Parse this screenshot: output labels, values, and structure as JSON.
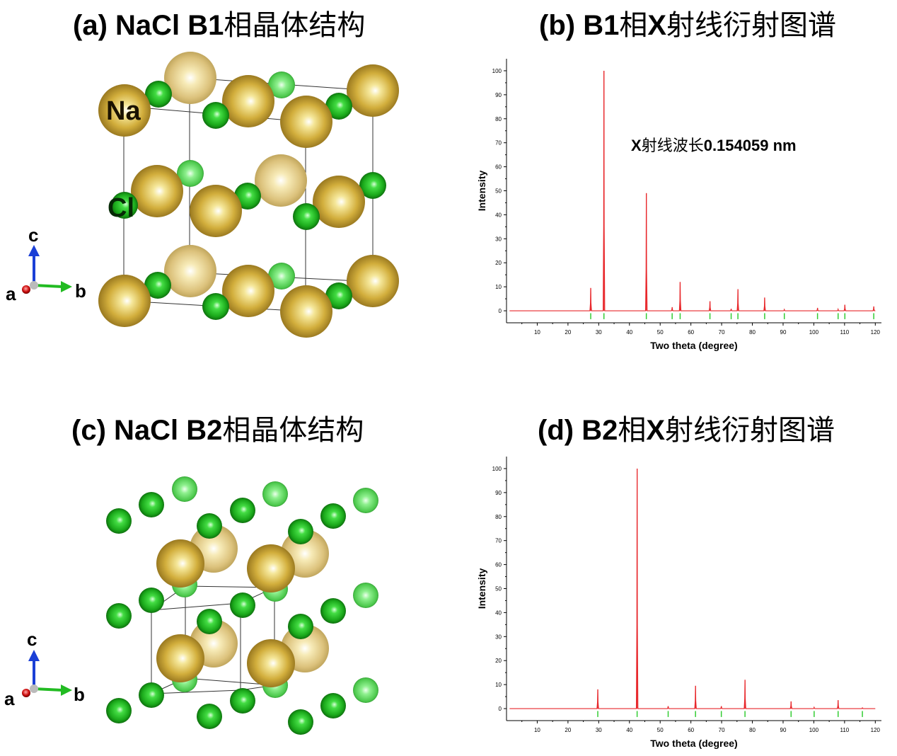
{
  "panels": {
    "a": {
      "title_prefix": "(a) NaCl B1",
      "title_suffix": "相晶体结构"
    },
    "b": {
      "title_prefix": "(b) B1",
      "title_mid1": "相",
      "title_x": "X",
      "title_suffix": "射线衍射图谱"
    },
    "c": {
      "title_prefix": "(c) NaCl B2",
      "title_suffix": "相晶体结构"
    },
    "d": {
      "title_prefix": "(d) B2",
      "title_mid1": "相",
      "title_x": "X",
      "title_suffix": "射线衍射图谱"
    }
  },
  "structure_labels": {
    "na": "Na",
    "cl": "Cl"
  },
  "axes_indicator": {
    "c": "c",
    "a": "a",
    "b": "b"
  },
  "annotation": {
    "x": "X",
    "cjk": "射线波长",
    "value": "0.154059 nm"
  },
  "colors": {
    "pattern_line": "#e8282c",
    "bragg_marks": "#33cc33",
    "na_gold": "#c9a632",
    "cl_green": "#22bb22",
    "axis_c": "#1a3fd6",
    "axis_b": "#22bb22",
    "axis_a": "#d01010"
  },
  "chart_data": [
    {
      "type": "line",
      "xlabel": "Two theta (degree)",
      "ylabel": "Intensity",
      "xlim": [
        0,
        122
      ],
      "ylim": [
        -5,
        105
      ],
      "xticks": [
        10,
        20,
        30,
        40,
        50,
        60,
        70,
        80,
        90,
        100,
        110,
        120
      ],
      "yticks": [
        0,
        10,
        20,
        30,
        40,
        50,
        60,
        70,
        80,
        90,
        100
      ],
      "series": [
        {
          "peaks": [
            [
              27.4,
              9.5
            ],
            [
              31.7,
              100
            ],
            [
              45.5,
              49
            ],
            [
              53.9,
              1.5
            ],
            [
              56.5,
              12
            ],
            [
              66.2,
              4
            ],
            [
              73.1,
              0.8
            ],
            [
              75.3,
              9
            ],
            [
              84.0,
              5.5
            ],
            [
              90.4,
              0.5
            ],
            [
              101.2,
              1.2
            ],
            [
              107.9,
              0.6
            ],
            [
              110.1,
              2.5
            ],
            [
              119.5,
              1.8
            ]
          ]
        }
      ],
      "bragg_marks": [
        27.4,
        31.7,
        45.5,
        53.9,
        56.5,
        66.2,
        73.1,
        75.3,
        84.0,
        90.4,
        101.2,
        107.9,
        110.1,
        119.5
      ],
      "grid": false
    },
    {
      "type": "line",
      "xlabel": "Two theta (degree)",
      "ylabel": "Intensity",
      "xlim": [
        0,
        122
      ],
      "ylim": [
        -5,
        105
      ],
      "xticks": [
        10,
        20,
        30,
        40,
        50,
        60,
        70,
        80,
        90,
        100,
        110,
        120
      ],
      "yticks": [
        0,
        10,
        20,
        30,
        40,
        50,
        60,
        70,
        80,
        90,
        100
      ],
      "series": [
        {
          "peaks": [
            [
              29.7,
              8
            ],
            [
              42.5,
              100
            ],
            [
              52.6,
              1
            ],
            [
              61.5,
              9.5
            ],
            [
              69.9,
              1
            ],
            [
              77.6,
              12
            ],
            [
              92.6,
              3
            ],
            [
              100.1,
              0.5
            ],
            [
              107.9,
              3.5
            ],
            [
              115.8,
              0.3
            ]
          ]
        }
      ],
      "bragg_marks": [
        29.7,
        42.5,
        52.6,
        61.5,
        69.9,
        77.6,
        92.6,
        100.1,
        107.9,
        115.8
      ],
      "grid": false
    }
  ]
}
